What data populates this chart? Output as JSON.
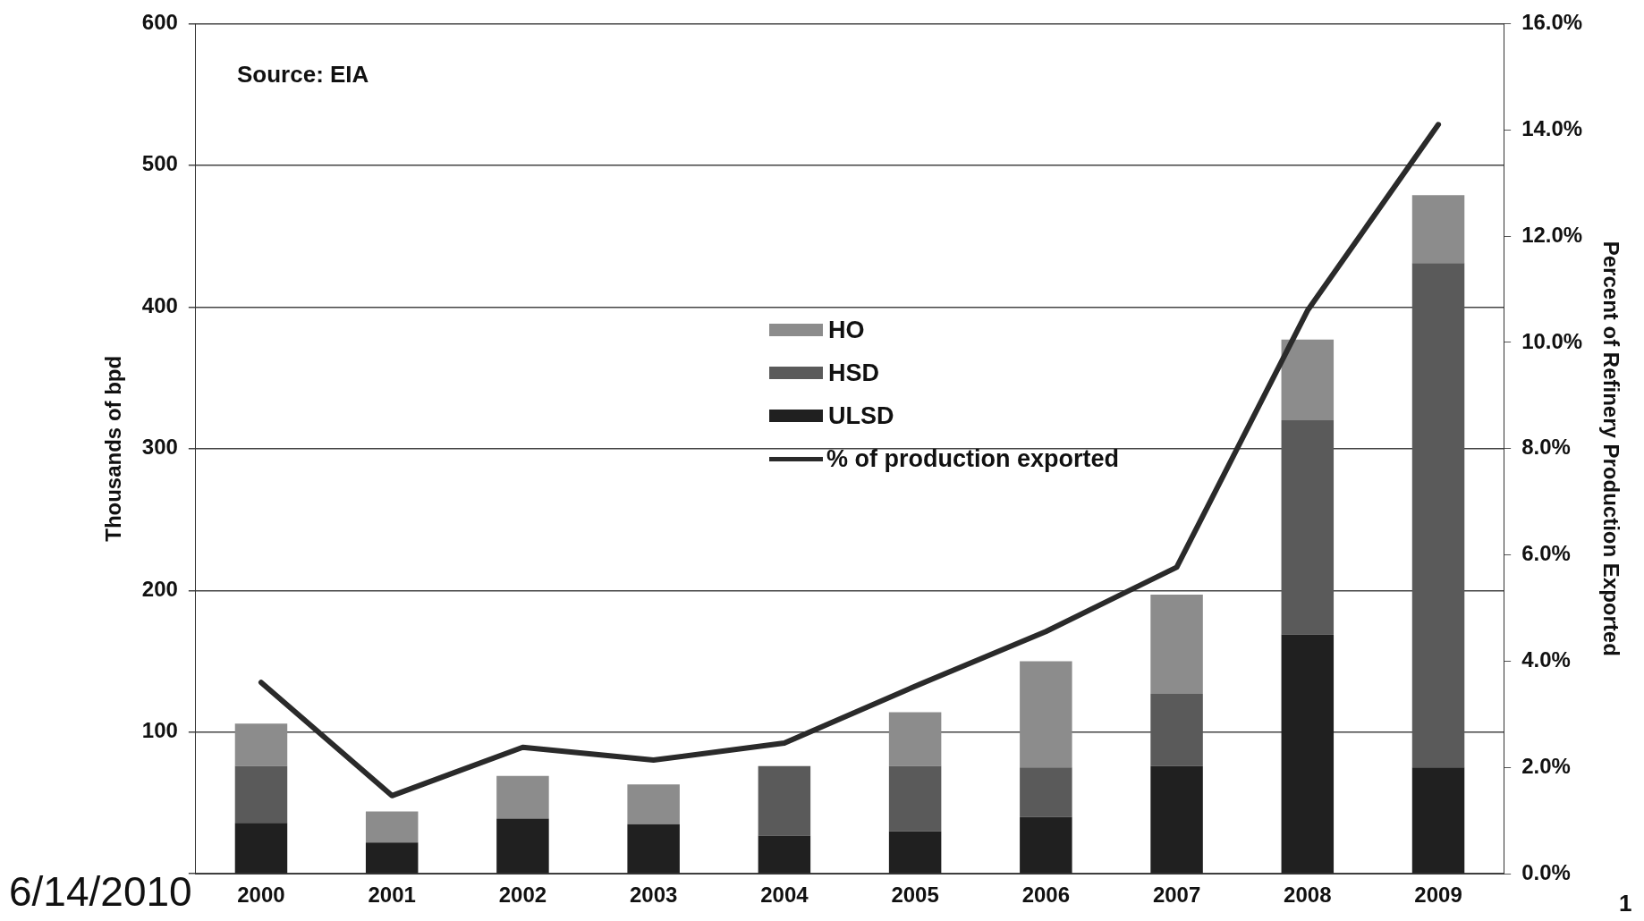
{
  "chart_data": {
    "type": "bar",
    "stacked": true,
    "ylabel": "Thousands of bpd",
    "y2label": "Percent of Refinery Production Exported",
    "categories": [
      "2000",
      "2001",
      "2002",
      "2003",
      "2004",
      "2005",
      "2006",
      "2007",
      "2008",
      "2009"
    ],
    "series": [
      {
        "name": "ULSD",
        "color": "#202020",
        "values": [
          36,
          22,
          39,
          35,
          27,
          30,
          40,
          76,
          169,
          75
        ]
      },
      {
        "name": "HSD",
        "color": "#5a5a5a",
        "values": [
          40,
          0,
          0,
          0,
          49,
          46,
          35,
          51,
          151,
          356
        ]
      },
      {
        "name": "HO",
        "color": "#8c8c8c",
        "values": [
          30,
          22,
          30,
          28,
          0,
          38,
          75,
          70,
          57,
          48
        ]
      },
      {
        "name": "% of production exported",
        "type": "line",
        "axis": "y2",
        "color": "#2a2a2a",
        "values": [
          3.6,
          1.47,
          2.38,
          2.14,
          2.46,
          3.53,
          4.56,
          5.77,
          10.6,
          14.1
        ]
      }
    ],
    "ylim": [
      0,
      600
    ],
    "yticks": [
      {
        "value": 0,
        "label": null
      },
      100,
      200,
      300,
      400,
      500,
      600
    ],
    "y2lim": [
      0,
      16
    ],
    "y2ticks": [
      {
        "value": 0,
        "label": "0.0%"
      },
      {
        "value": 2,
        "label": "2.0%"
      },
      {
        "value": 4,
        "label": "4.0%"
      },
      {
        "value": 6,
        "label": "6.0%"
      },
      {
        "value": 8,
        "label": "8.0%"
      },
      {
        "value": 10,
        "label": "10.0%"
      },
      {
        "value": 12,
        "label": "12.0%"
      },
      {
        "value": 14,
        "label": "14.0%"
      },
      {
        "value": 16,
        "label": "16.0%"
      }
    ],
    "grid": "y",
    "legend": "center",
    "marker": "none",
    "annotations": [
      "Source: EIA",
      "6/14/2010",
      "1"
    ]
  }
}
